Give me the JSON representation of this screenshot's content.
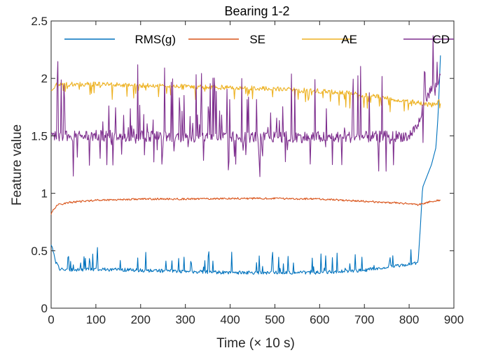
{
  "chart_data": {
    "type": "line",
    "title": "Bearing 1-2",
    "xlabel": "Time (× 10 s)",
    "ylabel": "Feature value",
    "xlim": [
      0,
      900
    ],
    "ylim": [
      0,
      2.5
    ],
    "xticks": [
      "0",
      "100",
      "200",
      "300",
      "400",
      "500",
      "600",
      "700",
      "800",
      "900"
    ],
    "yticks": [
      "0",
      "0.5",
      "1",
      "1.5",
      "2",
      "2.5"
    ],
    "grid": false,
    "legend_position": "top",
    "series": [
      {
        "name": "RMS(g)",
        "color": "#0072BD",
        "style": "noisy",
        "x": [
          0,
          5,
          10,
          20,
          40,
          100,
          200,
          300,
          400,
          500,
          600,
          700,
          750,
          800,
          820,
          825,
          830,
          840,
          850,
          860,
          865,
          870
        ],
        "values": [
          0.54,
          0.5,
          0.4,
          0.34,
          0.33,
          0.34,
          0.33,
          0.32,
          0.31,
          0.31,
          0.31,
          0.33,
          0.36,
          0.38,
          0.4,
          0.7,
          1.05,
          1.15,
          1.25,
          1.4,
          1.7,
          2.2
        ],
        "noise_amp": 0.015,
        "spike_prob": 0.09,
        "spike_max": 0.18,
        "noise_start": 0,
        "noise_end": 815
      },
      {
        "name": "SE",
        "color": "#D95319",
        "style": "noisy",
        "x": [
          0,
          5,
          15,
          40,
          100,
          200,
          300,
          400,
          500,
          600,
          700,
          750,
          800,
          820,
          850,
          870
        ],
        "values": [
          0.82,
          0.86,
          0.9,
          0.92,
          0.94,
          0.95,
          0.95,
          0.955,
          0.955,
          0.95,
          0.93,
          0.92,
          0.91,
          0.9,
          0.93,
          0.94
        ],
        "noise_amp": 0.008,
        "spike_prob": 0,
        "spike_max": 0,
        "noise_start": 0,
        "noise_end": 870
      },
      {
        "name": "AE",
        "color": "#EDB120",
        "style": "noisy",
        "x": [
          0,
          10,
          50,
          100,
          200,
          300,
          400,
          500,
          600,
          700,
          800,
          850,
          870
        ],
        "values": [
          1.9,
          1.94,
          1.95,
          1.95,
          1.94,
          1.93,
          1.92,
          1.91,
          1.89,
          1.86,
          1.8,
          1.77,
          1.8
        ],
        "noise_amp": 0.02,
        "spike_prob": 0.12,
        "spike_max": -0.12,
        "noise_start": 0,
        "noise_end": 870
      },
      {
        "name": "CD",
        "color": "#7E2F8E",
        "style": "noisy",
        "x": [
          0,
          100,
          200,
          300,
          400,
          500,
          600,
          700,
          800,
          820,
          840,
          860,
          870
        ],
        "values": [
          1.5,
          1.5,
          1.5,
          1.49,
          1.49,
          1.49,
          1.49,
          1.49,
          1.5,
          1.6,
          1.85,
          1.95,
          2.0
        ],
        "noise_amp": 0.05,
        "spike_prob": 0.22,
        "spike_max": 0.65,
        "noise_start": 0,
        "noise_end": 870
      }
    ]
  }
}
